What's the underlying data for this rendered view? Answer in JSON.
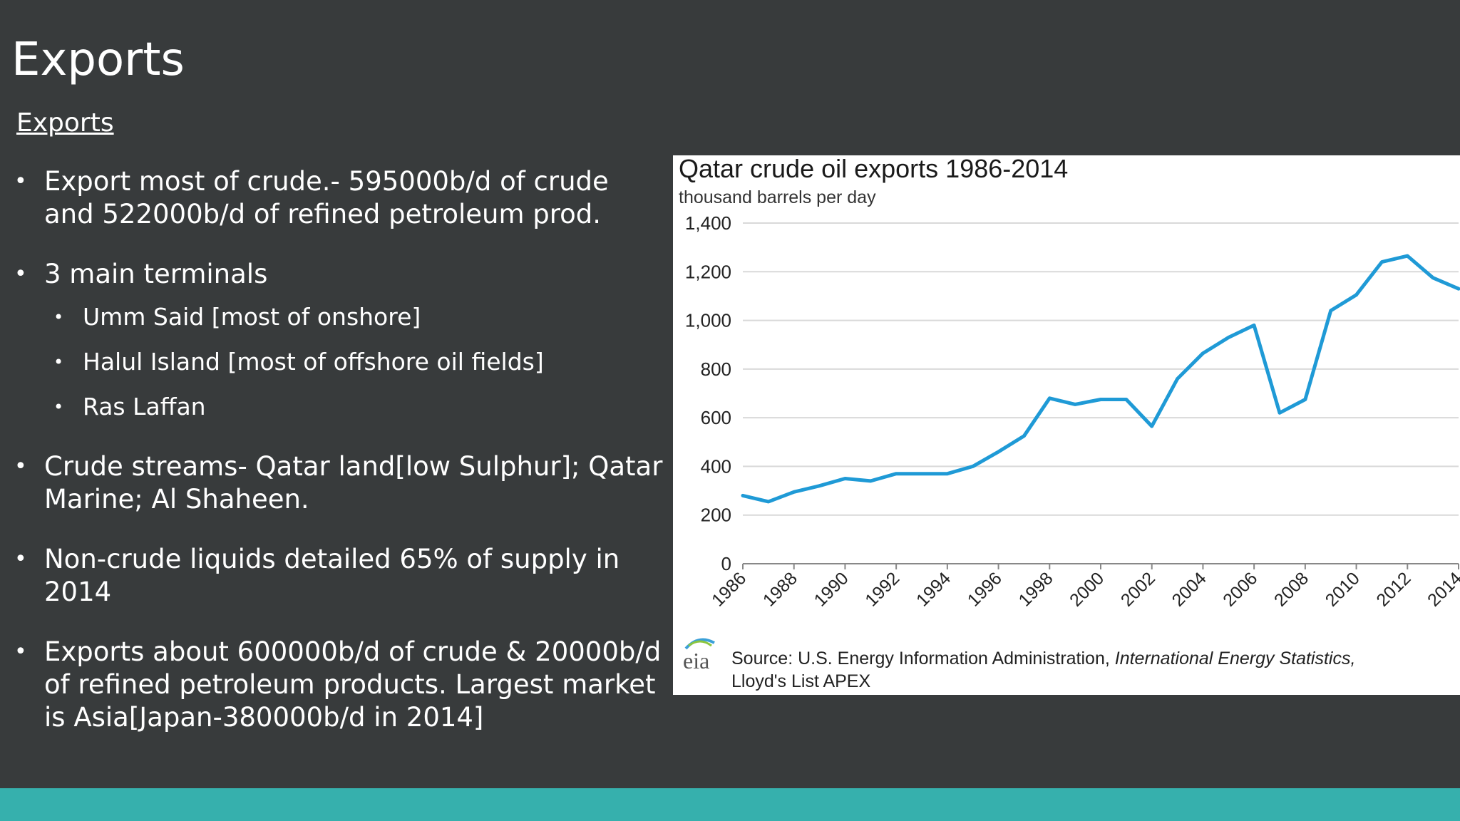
{
  "slide": {
    "title": "Exports",
    "subtitle": "Exports",
    "accent_color": "#36b0ad",
    "background_color": "#383b3c"
  },
  "bullets": {
    "b1": "Export most of crude.- 595000b/d of crude and 522000b/d of refined petroleum prod.",
    "b2": "3 main terminals",
    "s1": "Umm Said [most of onshore]",
    "s2": "Halul Island [most of offshore oil fields]",
    "s3": "Ras Laffan",
    "b3": "Crude streams- Qatar land[low Sulphur]; Qatar Marine; Al Shaheen.",
    "b4": "Non-crude liquids detailed 65% of supply in 2014",
    "b5": "Exports about 600000b/d of crude & 20000b/d of refined petroleum products. Largest market is Asia[Japan-380000b/d in 2014]"
  },
  "chart_data": {
    "type": "line",
    "title": "Qatar crude oil exports 1986-2014",
    "ylabel": "thousand barrels per day",
    "xlabel": "",
    "ylim": [
      0,
      1400
    ],
    "yticks": [
      "0",
      "200",
      "400",
      "600",
      "800",
      "1,000",
      "1,200",
      "1,400"
    ],
    "xticks": [
      "1986",
      "1988",
      "1990",
      "1992",
      "1994",
      "1996",
      "1998",
      "2000",
      "2002",
      "2004",
      "2006",
      "2008",
      "2010",
      "2012",
      "2014"
    ],
    "grid": true,
    "line_color": "#1f9ad6",
    "series": [
      {
        "name": "Qatar crude oil exports",
        "x": [
          1986,
          1987,
          1988,
          1989,
          1990,
          1991,
          1992,
          1993,
          1994,
          1995,
          1996,
          1997,
          1998,
          1999,
          2000,
          2001,
          2002,
          2003,
          2004,
          2005,
          2006,
          2007,
          2008,
          2009,
          2010,
          2011,
          2012,
          2013,
          2014
        ],
        "values": [
          280,
          255,
          295,
          320,
          350,
          340,
          370,
          370,
          370,
          400,
          460,
          525,
          680,
          655,
          675,
          675,
          565,
          760,
          865,
          930,
          980,
          620,
          675,
          1040,
          1105,
          1240,
          1265,
          1175,
          1130
        ]
      }
    ],
    "logo_text": "eia",
    "source_prefix": "Source:  U.S. Energy Information  Administration, ",
    "source_italic": "International  Energy  Statistics,",
    "source_line2": "Lloyd's List APEX"
  }
}
